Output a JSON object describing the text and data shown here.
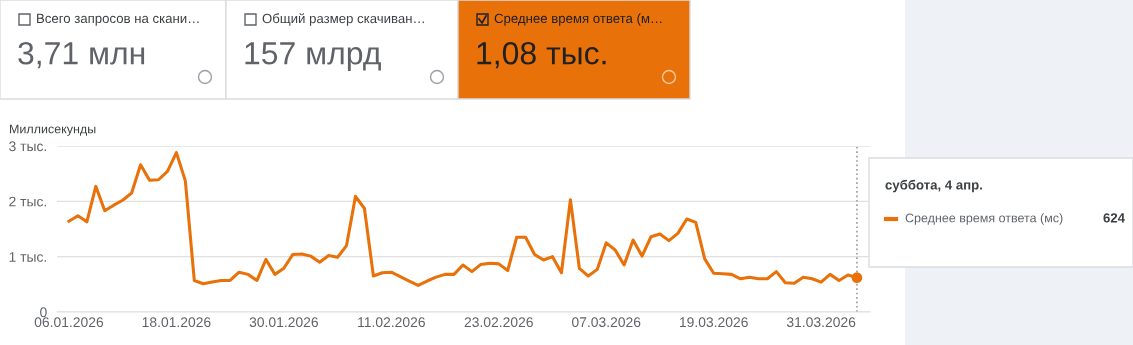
{
  "chart_data": {
    "type": "line",
    "ylabel": "Миллисекунды",
    "annotations": [
      "Всего запросов на скани…",
      "3,71 млн",
      "Общий размер скачиван…",
      "157 млрд",
      "Среднее время ответа (м…",
      "1,08 тыс.",
      "суббота, 4 апр.",
      "624"
    ],
    "x": [
      "2026-01-06",
      "2026-01-07",
      "2026-01-08",
      "2026-01-09",
      "2026-01-10",
      "2026-01-11",
      "2026-01-12",
      "2026-01-13",
      "2026-01-14",
      "2026-01-15",
      "2026-01-16",
      "2026-01-17",
      "2026-01-18",
      "2026-01-19",
      "2026-01-20",
      "2026-01-21",
      "2026-01-22",
      "2026-01-23",
      "2026-01-24",
      "2026-01-25",
      "2026-01-26",
      "2026-01-27",
      "2026-01-28",
      "2026-01-29",
      "2026-01-30",
      "2026-01-31",
      "2026-02-01",
      "2026-02-02",
      "2026-02-03",
      "2026-02-04",
      "2026-02-05",
      "2026-02-06",
      "2026-02-07",
      "2026-02-08",
      "2026-02-09",
      "2026-02-10",
      "2026-02-11",
      "2026-02-12",
      "2026-02-13",
      "2026-02-14",
      "2026-02-15",
      "2026-02-16",
      "2026-02-17",
      "2026-02-18",
      "2026-02-19",
      "2026-02-20",
      "2026-02-21",
      "2026-02-22",
      "2026-02-23",
      "2026-02-24",
      "2026-02-25",
      "2026-02-26",
      "2026-02-27",
      "2026-02-28",
      "2026-03-01",
      "2026-03-02",
      "2026-03-03",
      "2026-03-04",
      "2026-03-05",
      "2026-03-06",
      "2026-03-07",
      "2026-03-08",
      "2026-03-09",
      "2026-03-10",
      "2026-03-11",
      "2026-03-12",
      "2026-03-13",
      "2026-03-14",
      "2026-03-15",
      "2026-03-16",
      "2026-03-17",
      "2026-03-18",
      "2026-03-19",
      "2026-03-20",
      "2026-03-21",
      "2026-03-22",
      "2026-03-23",
      "2026-03-24",
      "2026-03-25",
      "2026-03-26",
      "2026-03-27",
      "2026-03-28",
      "2026-03-29",
      "2026-03-30",
      "2026-03-31",
      "2026-04-01",
      "2026-04-02",
      "2026-04-03",
      "2026-04-04"
    ],
    "series": [
      {
        "name": "Среднее время ответа (мс)",
        "color": "#e8710a",
        "values": [
          1.64,
          1.74,
          1.63,
          2.27,
          1.83,
          1.93,
          2.02,
          2.15,
          2.66,
          2.38,
          2.39,
          2.54,
          2.88,
          2.37,
          0.57,
          0.51,
          0.54,
          0.57,
          0.57,
          0.72,
          0.68,
          0.57,
          0.95,
          0.68,
          0.79,
          1.04,
          1.05,
          1.01,
          0.9,
          1.02,
          0.99,
          1.2,
          2.09,
          1.87,
          0.65,
          0.71,
          0.72,
          0.64,
          0.56,
          0.48,
          0.56,
          0.63,
          0.68,
          0.68,
          0.85,
          0.73,
          0.86,
          0.88,
          0.87,
          0.75,
          1.35,
          1.35,
          1.04,
          0.94,
          1.0,
          0.71,
          2.03,
          0.79,
          0.65,
          0.77,
          1.25,
          1.12,
          0.85,
          1.3,
          1.01,
          1.36,
          1.41,
          1.29,
          1.42,
          1.68,
          1.62,
          0.96,
          0.7,
          0.69,
          0.68,
          0.6,
          0.63,
          0.6,
          0.6,
          0.73,
          0.53,
          0.52,
          0.63,
          0.6,
          0.54,
          0.68,
          0.57,
          0.67,
          0.62
        ]
      },
      {
        "color": "#e8710a",
        "type": "scatter",
        "marker": "circle",
        "x": [
          "2026-04-04"
        ],
        "values": [
          0.62
        ]
      }
    ],
    "xlim": [
      "2026-01-04T16:00",
      "2026-04-05T11:00"
    ],
    "xticks": [
      {
        "value": "2026-01-06",
        "label": "06.01.2026"
      },
      {
        "value": "2026-01-18",
        "label": "18.01.2026"
      },
      {
        "value": "2026-01-30",
        "label": "30.01.2026"
      },
      {
        "value": "2026-02-11",
        "label": "11.02.2026"
      },
      {
        "value": "2026-02-23",
        "label": "23.02.2026"
      },
      {
        "value": "2026-03-07",
        "label": "07.03.2026"
      },
      {
        "value": "2026-03-19",
        "label": "19.03.2026"
      },
      {
        "value": "2026-03-31",
        "label": "31.03.2026"
      }
    ],
    "ylim": [
      0,
      3
    ],
    "yticks": [
      0,
      {
        "value": 1,
        "label": "1 тыс."
      },
      {
        "value": 2,
        "label": "2 тыс."
      },
      {
        "value": 3,
        "label": "3 тыс."
      }
    ],
    "ref_lines": [
      {
        "axis": "x",
        "value": "2026-04-04",
        "color": "#9e9e9e",
        "line_style": "dotted"
      }
    ],
    "grid": "y",
    "legend": "right",
    "marker": "none",
    "line_style": "solid"
  }
}
